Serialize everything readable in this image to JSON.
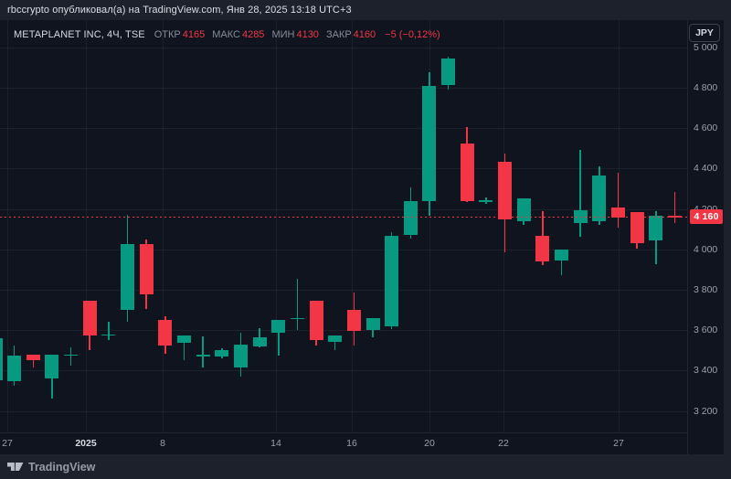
{
  "attribution": {
    "text": "rbccrypto опубликовал(а) на TradingView.com, Янв 28, 2025 13:18 UTC+3"
  },
  "header": {
    "symbol": "METAPLANET INC, 4Ч, TSE",
    "fields": [
      {
        "label": "ОТКР",
        "value": "4165"
      },
      {
        "label": "МАКС",
        "value": "4285"
      },
      {
        "label": "МИН",
        "value": "4130"
      },
      {
        "label": "ЗАКР",
        "value": "4160"
      }
    ],
    "change": "−5 (−0,12%)",
    "currency_button": "JPY"
  },
  "last_price": {
    "value": 4160,
    "label": "4 160"
  },
  "footer": {
    "brand": "TradingView"
  },
  "colors": {
    "up": "#089981",
    "down": "#f23645",
    "accent": "#f23645",
    "chart_bg": "#0f141f",
    "page_bg": "#1c212c"
  },
  "chart_data": {
    "type": "candlestick",
    "title": "METAPLANET INC, 4Ч, TSE",
    "currency": "JPY",
    "ylim": [
      3150,
      5050
    ],
    "y_tick_values": [
      5000,
      4800,
      4600,
      4400,
      4200,
      4000,
      3800,
      3600,
      3400,
      3200
    ],
    "y_tick_labels": [
      "5 000",
      "4 800",
      "4 600",
      "4 400",
      "4 200",
      "4 000",
      "3 800",
      "3 600",
      "3 400",
      "3 200"
    ],
    "x_tick_labels": [
      "27",
      "2025",
      "8",
      "14",
      "16",
      "20",
      "22",
      "27"
    ],
    "last_price": 4160,
    "grid": true,
    "candles_ohlc": [
      [
        3350,
        3565,
        3345,
        3560
      ],
      [
        3345,
        3525,
        3325,
        3475
      ],
      [
        3480,
        3480,
        3415,
        3450
      ],
      [
        3360,
        3480,
        3260,
        3480
      ],
      [
        3475,
        3515,
        3425,
        3480
      ],
      [
        3745,
        3745,
        3500,
        3575
      ],
      [
        3575,
        3640,
        3550,
        3580
      ],
      [
        3700,
        4170,
        3640,
        4025
      ],
      [
        4025,
        4050,
        3705,
        3775
      ],
      [
        3650,
        3670,
        3485,
        3525
      ],
      [
        3535,
        3575,
        3450,
        3575
      ],
      [
        3470,
        3570,
        3415,
        3480
      ],
      [
        3470,
        3510,
        3460,
        3500
      ],
      [
        3415,
        3585,
        3370,
        3530
      ],
      [
        3520,
        3610,
        3515,
        3565
      ],
      [
        3585,
        3650,
        3475,
        3650
      ],
      [
        3655,
        3855,
        3600,
        3660
      ],
      [
        3745,
        3745,
        3525,
        3550
      ],
      [
        3540,
        3575,
        3500,
        3575
      ],
      [
        3700,
        3785,
        3525,
        3595
      ],
      [
        3600,
        3660,
        3565,
        3660
      ],
      [
        3620,
        4085,
        3605,
        4065
      ],
      [
        4070,
        4305,
        4055,
        4240
      ],
      [
        4240,
        4875,
        4165,
        4810
      ],
      [
        4815,
        4955,
        4790,
        4945
      ],
      [
        4525,
        4605,
        4235,
        4240
      ],
      [
        4235,
        4255,
        4225,
        4245
      ],
      [
        4435,
        4475,
        3985,
        4150
      ],
      [
        4140,
        4250,
        4120,
        4250
      ],
      [
        4065,
        4190,
        3920,
        3940
      ],
      [
        3945,
        4000,
        3870,
        4000
      ],
      [
        4130,
        4490,
        4060,
        4195
      ],
      [
        4140,
        4410,
        4120,
        4365
      ],
      [
        4205,
        4380,
        4105,
        4155
      ],
      [
        4185,
        4185,
        4005,
        4030
      ],
      [
        4045,
        4190,
        3925,
        4165
      ],
      [
        4165,
        4285,
        4130,
        4160
      ]
    ]
  }
}
